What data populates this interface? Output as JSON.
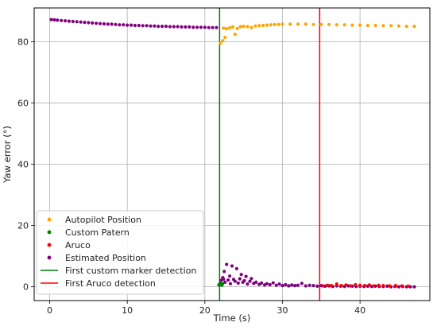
{
  "chart_data": {
    "type": "scatter",
    "xlabel": "Time (s)",
    "ylabel": "Yaw error (°)",
    "xlim": [
      -2,
      49
    ],
    "ylim": [
      -4.5,
      91
    ],
    "xticks": [
      0,
      10,
      20,
      30,
      40
    ],
    "yticks": [
      0,
      20,
      40,
      60,
      80
    ],
    "grid": true,
    "legend_position": "lower-left",
    "series": [
      {
        "name": "Autopilot Position",
        "color": "#ffa500",
        "marker": "point",
        "points": [
          [
            22.0,
            79.5
          ],
          [
            22.3,
            80.3
          ],
          [
            22.6,
            81.4
          ],
          [
            22.4,
            84.4
          ],
          [
            22.8,
            84.2
          ],
          [
            23.2,
            84.5
          ],
          [
            23.6,
            84.8
          ],
          [
            23.9,
            82.4
          ],
          [
            24.2,
            84.3
          ],
          [
            24.6,
            84.9
          ],
          [
            25.0,
            85.0
          ],
          [
            25.5,
            84.9
          ],
          [
            26.0,
            84.6
          ],
          [
            26.5,
            85.1
          ],
          [
            27.0,
            85.2
          ],
          [
            27.5,
            85.3
          ],
          [
            28.0,
            85.4
          ],
          [
            28.5,
            85.5
          ],
          [
            29.0,
            85.6
          ],
          [
            29.5,
            85.6
          ],
          [
            30.0,
            85.7
          ],
          [
            31.0,
            85.7
          ],
          [
            32.0,
            85.7
          ],
          [
            33.0,
            85.7
          ],
          [
            34.0,
            85.6
          ],
          [
            35.0,
            85.6
          ],
          [
            36.0,
            85.6
          ],
          [
            37.0,
            85.5
          ],
          [
            38.0,
            85.5
          ],
          [
            39.0,
            85.4
          ],
          [
            40.0,
            85.4
          ],
          [
            41.0,
            85.3
          ],
          [
            42.0,
            85.3
          ],
          [
            43.0,
            85.2
          ],
          [
            44.0,
            85.2
          ],
          [
            45.0,
            85.1
          ],
          [
            46.0,
            85.0
          ],
          [
            47.0,
            85.0
          ]
        ]
      },
      {
        "name": "Custom Patern",
        "color": "#008000",
        "marker": "point",
        "points": [
          [
            21.8,
            0.6
          ],
          [
            21.9,
            0.9
          ],
          [
            22.0,
            1.2
          ],
          [
            22.1,
            0.8
          ],
          [
            22.2,
            0.5
          ],
          [
            22.3,
            1.0
          ]
        ]
      },
      {
        "name": "Aruco",
        "color": "#ff0000",
        "marker": "point",
        "points": [
          [
            35.2,
            0.3
          ],
          [
            35.8,
            0.5
          ],
          [
            36.3,
            0.4
          ],
          [
            37.0,
            0.9
          ],
          [
            37.6,
            0.4
          ],
          [
            38.2,
            0.6
          ],
          [
            38.8,
            0.3
          ],
          [
            39.4,
            0.7
          ],
          [
            40.0,
            0.5
          ],
          [
            40.6,
            0.4
          ],
          [
            41.2,
            0.6
          ],
          [
            41.8,
            0.3
          ],
          [
            42.4,
            0.5
          ],
          [
            43.0,
            0.4
          ],
          [
            43.8,
            0.3
          ],
          [
            44.6,
            0.4
          ],
          [
            45.4,
            0.3
          ],
          [
            46.2,
            0.2
          ]
        ]
      },
      {
        "name": "Estimated Position",
        "color": "#800080",
        "marker": "point",
        "points": [
          [
            0.2,
            87.2
          ],
          [
            0.6,
            87.1
          ],
          [
            1.0,
            87.0
          ],
          [
            1.5,
            86.9
          ],
          [
            2.0,
            86.8
          ],
          [
            2.5,
            86.7
          ],
          [
            3.0,
            86.6
          ],
          [
            3.5,
            86.5
          ],
          [
            4.0,
            86.4
          ],
          [
            4.5,
            86.3
          ],
          [
            5.0,
            86.2
          ],
          [
            5.5,
            86.1
          ],
          [
            6.0,
            86.0
          ],
          [
            6.5,
            85.9
          ],
          [
            7.0,
            85.8
          ],
          [
            7.5,
            85.7
          ],
          [
            8.0,
            85.7
          ],
          [
            8.5,
            85.6
          ],
          [
            9.0,
            85.5
          ],
          [
            9.5,
            85.5
          ],
          [
            10.0,
            85.4
          ],
          [
            10.5,
            85.4
          ],
          [
            11.0,
            85.3
          ],
          [
            11.5,
            85.3
          ],
          [
            12.0,
            85.2
          ],
          [
            12.5,
            85.2
          ],
          [
            13.0,
            85.1
          ],
          [
            13.5,
            85.1
          ],
          [
            14.0,
            85.0
          ],
          [
            14.5,
            85.0
          ],
          [
            15.0,
            85.0
          ],
          [
            15.5,
            84.9
          ],
          [
            16.0,
            84.9
          ],
          [
            16.5,
            84.9
          ],
          [
            17.0,
            84.8
          ],
          [
            17.5,
            84.8
          ],
          [
            18.0,
            84.8
          ],
          [
            18.5,
            84.7
          ],
          [
            19.0,
            84.7
          ],
          [
            19.5,
            84.7
          ],
          [
            20.0,
            84.7
          ],
          [
            20.5,
            84.6
          ],
          [
            21.0,
            84.6
          ],
          [
            21.5,
            84.6
          ],
          [
            22.1,
            2.1
          ],
          [
            22.3,
            3.0
          ],
          [
            22.4,
            2.5
          ],
          [
            22.5,
            5.0
          ],
          [
            22.6,
            1.5
          ],
          [
            22.8,
            7.3
          ],
          [
            23.0,
            2.2
          ],
          [
            23.2,
            3.5
          ],
          [
            23.3,
            1.0
          ],
          [
            23.5,
            6.8
          ],
          [
            23.7,
            2.4
          ],
          [
            23.9,
            1.8
          ],
          [
            24.1,
            5.9
          ],
          [
            24.3,
            1.2
          ],
          [
            24.5,
            2.6
          ],
          [
            24.7,
            4.0
          ],
          [
            24.9,
            1.5
          ],
          [
            25.1,
            2.0
          ],
          [
            25.3,
            3.4
          ],
          [
            25.5,
            0.9
          ],
          [
            25.8,
            1.8
          ],
          [
            26.0,
            2.7
          ],
          [
            26.3,
            1.1
          ],
          [
            26.6,
            1.5
          ],
          [
            27.0,
            0.8
          ],
          [
            27.3,
            1.2
          ],
          [
            27.7,
            0.6
          ],
          [
            28.0,
            1.0
          ],
          [
            28.4,
            0.7
          ],
          [
            28.8,
            1.3
          ],
          [
            29.2,
            0.5
          ],
          [
            29.6,
            0.9
          ],
          [
            30.0,
            0.4
          ],
          [
            30.4,
            0.7
          ],
          [
            30.8,
            0.3
          ],
          [
            31.2,
            0.6
          ],
          [
            31.6,
            0.4
          ],
          [
            32.0,
            0.5
          ],
          [
            32.5,
            1.1
          ],
          [
            33.0,
            0.3
          ],
          [
            33.5,
            0.5
          ],
          [
            34.0,
            0.4
          ],
          [
            34.5,
            0.2
          ],
          [
            35.0,
            0.4
          ],
          [
            35.5,
            0.2
          ],
          [
            36.0,
            0.3
          ],
          [
            36.5,
            0.1
          ],
          [
            37.0,
            0.3
          ],
          [
            37.5,
            0.2
          ],
          [
            38.0,
            0.1
          ],
          [
            38.5,
            0.3
          ],
          [
            39.0,
            0.2
          ],
          [
            39.5,
            0.1
          ],
          [
            40.0,
            0.2
          ],
          [
            40.5,
            0.1
          ],
          [
            41.0,
            0.2
          ],
          [
            41.5,
            0.1
          ],
          [
            42.0,
            0.2
          ],
          [
            42.5,
            0.1
          ],
          [
            43.0,
            0.1
          ],
          [
            43.5,
            0.2
          ],
          [
            44.0,
            0.0
          ],
          [
            44.5,
            0.1
          ],
          [
            45.0,
            0.0
          ],
          [
            45.5,
            0.1
          ],
          [
            46.0,
            0.0
          ],
          [
            46.5,
            0.0
          ],
          [
            47.0,
            0.0
          ]
        ]
      }
    ],
    "vlines": [
      {
        "name": "First custom marker detection",
        "x": 21.9,
        "color": "#008000"
      },
      {
        "name": "First Aruco detection",
        "x": 34.8,
        "color": "#ff0000"
      }
    ],
    "legend": [
      {
        "label": "Autopilot Position",
        "kind": "marker",
        "color": "#ffa500"
      },
      {
        "label": "Custom Patern",
        "kind": "marker",
        "color": "#008000"
      },
      {
        "label": "Aruco",
        "kind": "marker",
        "color": "#ff0000"
      },
      {
        "label": "Estimated Position",
        "kind": "marker",
        "color": "#800080"
      },
      {
        "label": "First custom marker detection",
        "kind": "line",
        "color": "#008000"
      },
      {
        "label": "First Aruco detection",
        "kind": "line",
        "color": "#ff0000"
      }
    ]
  }
}
